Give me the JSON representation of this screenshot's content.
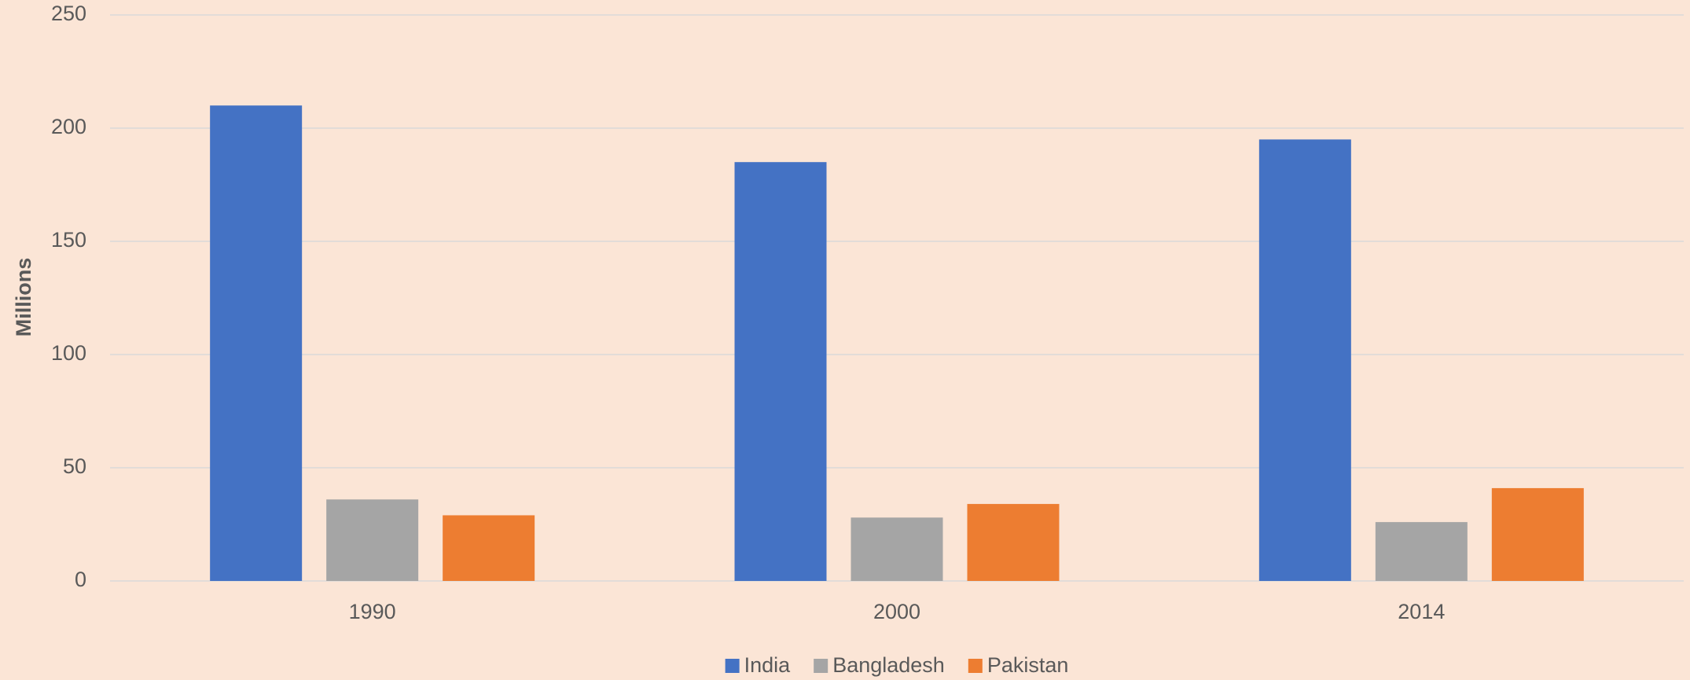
{
  "chart_data": {
    "type": "bar",
    "y_label": "Millions",
    "categories": [
      "1990",
      "2000",
      "2014"
    ],
    "series": [
      {
        "name": "India",
        "color": "#4472c4",
        "values": [
          210,
          185,
          195
        ]
      },
      {
        "name": "Bangladesh",
        "color": "#a5a5a5",
        "values": [
          36,
          28,
          26
        ]
      },
      {
        "name": "Pakistan",
        "color": "#ed7d31",
        "values": [
          29,
          34,
          41
        ]
      }
    ],
    "ylim": [
      0,
      250
    ],
    "yticks": [
      0,
      50,
      100,
      150,
      200,
      250
    ],
    "grid": true,
    "legend": "bottom"
  }
}
